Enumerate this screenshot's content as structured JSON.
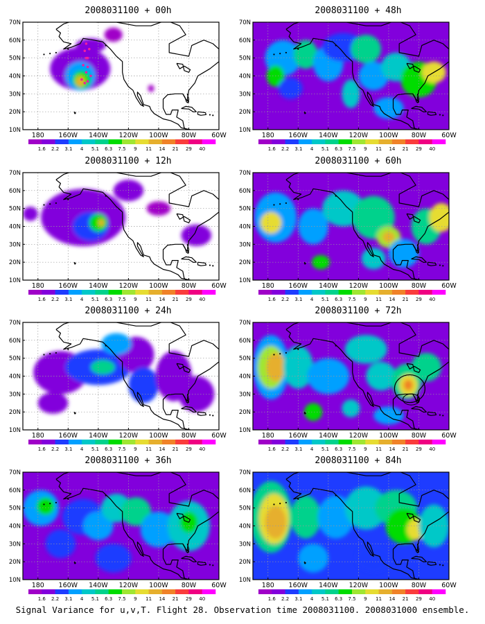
{
  "caption": "Signal Variance for u,v,T. Flight 28. Observation time 2008031100. 2008031000 ensemble.",
  "latitude_labels": [
    "70N",
    "60N",
    "50N",
    "40N",
    "30N",
    "20N",
    "10N"
  ],
  "longitude_labels": [
    "180",
    "160W",
    "140W",
    "120W",
    "100W",
    "80W",
    "60W"
  ],
  "colorbar": {
    "levels": [
      "1.6",
      "2.2",
      "3.1",
      "4",
      "5.1",
      "6.3",
      "7.5",
      "9",
      "11",
      "14",
      "21",
      "29",
      "40"
    ],
    "colors": [
      "#a000c8",
      "#8200dc",
      "#1e3cff",
      "#00a0ff",
      "#00c8c8",
      "#00d28c",
      "#00dc00",
      "#a0e632",
      "#e6dc32",
      "#e6af2d",
      "#f08228",
      "#fa3c3c",
      "#f00082",
      "#ff00ff"
    ]
  },
  "flight_track_color": "#f01ea0",
  "panels": [
    {
      "title": "2008031100 + 00h"
    },
    {
      "title": "2008031100 + 48h"
    },
    {
      "title": "2008031100 + 12h"
    },
    {
      "title": "2008031100 + 60h"
    },
    {
      "title": "2008031100 + 24h"
    },
    {
      "title": "2008031100 + 72h"
    },
    {
      "title": "2008031100 + 36h"
    },
    {
      "title": "2008031100 + 84h"
    }
  ]
}
